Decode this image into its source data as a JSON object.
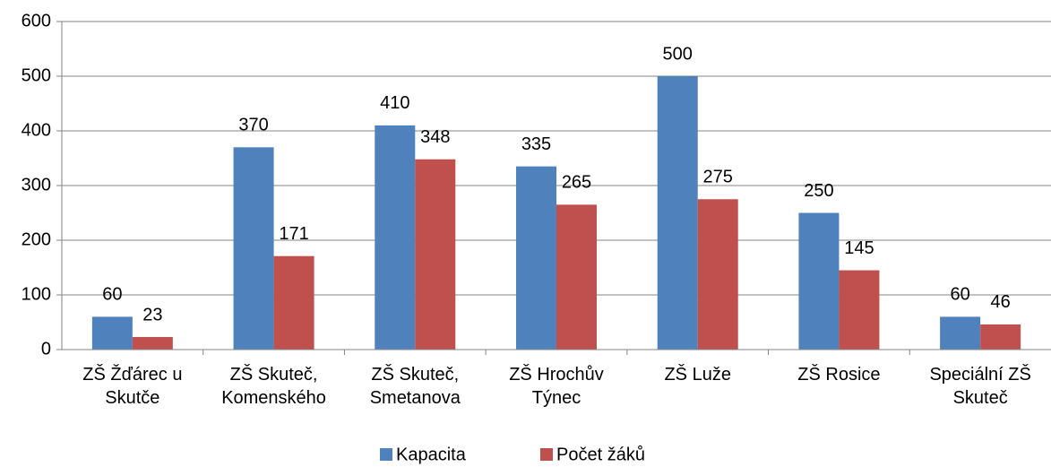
{
  "chart_data": {
    "type": "bar",
    "categories": [
      "ZŠ Žďárec u Skutče",
      "ZŠ Skuteč, Komenského",
      "ZŠ Skuteč, Smetanova",
      "ZŠ Hrochův Týnec",
      "ZŠ Luže",
      "ZŠ Rosice",
      "Speciální ZŠ Skuteč"
    ],
    "series": [
      {
        "name": "Kapacita",
        "color": "#4f81bd",
        "values": [
          60,
          370,
          410,
          335,
          500,
          250,
          60
        ]
      },
      {
        "name": "Počet žáků",
        "color": "#c0504d",
        "values": [
          23,
          171,
          348,
          265,
          275,
          145,
          46
        ]
      }
    ],
    "ylim": [
      0,
      600
    ],
    "yticks": [
      0,
      100,
      200,
      300,
      400,
      500,
      600
    ],
    "grid": true,
    "legend": "bottom"
  }
}
